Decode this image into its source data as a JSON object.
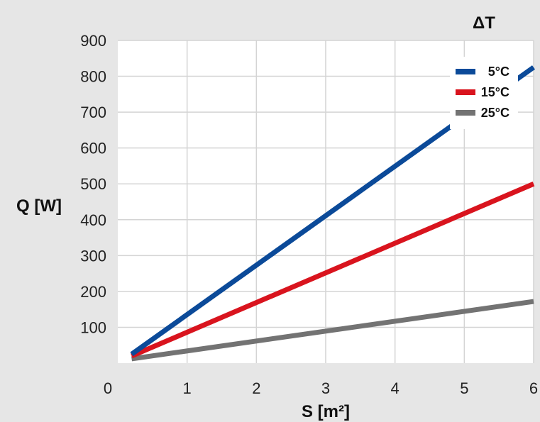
{
  "chart_data": {
    "type": "line",
    "title": "ΔT",
    "xlabel": "S [m²]",
    "ylabel": "Q [W]",
    "xlim": [
      0,
      6
    ],
    "ylim": [
      0,
      900
    ],
    "xticks": [
      "0",
      "1",
      "2",
      "3",
      "4",
      "5",
      "6"
    ],
    "yticks": [
      "100",
      "200",
      "300",
      "400",
      "500",
      "600",
      "700",
      "800",
      "900"
    ],
    "grid": true,
    "legend_position": "top-right",
    "series": [
      {
        "name": "5°C",
        "color": "#0b4a99",
        "x": [
          0.2,
          6.0
        ],
        "y": [
          25,
          825
        ]
      },
      {
        "name": "15°C",
        "color": "#d9141e",
        "x": [
          0.2,
          6.0
        ],
        "y": [
          20,
          500
        ]
      },
      {
        "name": "25°C",
        "color": "#737373",
        "x": [
          0.2,
          6.0
        ],
        "y": [
          12,
          172
        ]
      }
    ]
  }
}
